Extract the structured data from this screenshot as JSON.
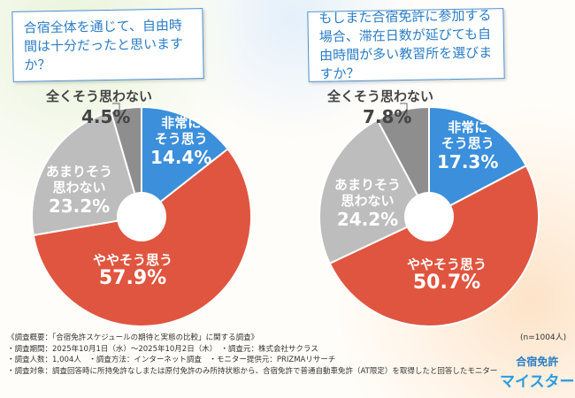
{
  "chart_data": [
    {
      "type": "pie",
      "title": "合宿全体を通じて、自由時間は十分だったと思いますか？",
      "categories": [
        "非常にそう思う",
        "ややそう思う",
        "あまりそう思わない",
        "全くそう思わない"
      ],
      "values": [
        14.4,
        57.9,
        23.2,
        4.5
      ],
      "labels": [
        "14.4%",
        "57.9%",
        "23.2%",
        "4.5%"
      ],
      "colors": [
        "#3b8fdb",
        "#e0553f",
        "#bdbdbd",
        "#8e8e8e"
      ]
    },
    {
      "type": "pie",
      "title": "もしまた合宿免許に参加する場合、滞在日数が延びても自由時間が多い教習所を選びますか？",
      "categories": [
        "非常にそう思う",
        "ややそう思う",
        "あまりそう思わない",
        "全くそう思わない"
      ],
      "values": [
        17.3,
        50.7,
        24.2,
        7.8
      ],
      "labels": [
        "17.3%",
        "50.7%",
        "24.2%",
        "7.8%"
      ],
      "colors": [
        "#3b8fdb",
        "#e0553f",
        "#bdbdbd",
        "#8e8e8e"
      ]
    }
  ],
  "cat_lines": {
    "c0a": "非常に",
    "c0b": "そう思う",
    "c1": "ややそう思う",
    "c2a": "あまりそう",
    "c2b": "思わない",
    "c3": "全くそう思わない"
  },
  "sample": "(n=1004人)",
  "footer": [
    "《調査概要：「合宿免許スケジュールの期待と実態の比較」に関する調査》",
    "・調査期間：2025年10月1日（水）～2025年10月2日（木）　・調査元：株式会社サクラス",
    "・調査人数：1,004人　・調査方法：インターネット調査　・モニター提供元：PRIZMAリサーチ",
    "・調査対象：調査回答時に所持免許なしまたは原付免許のみ所持状態から、合宿免許で普通自動車免許（AT限定）を取得したと回答したモニター"
  ],
  "logo": {
    "line1": "合宿免許",
    "line2": "マイスター"
  }
}
